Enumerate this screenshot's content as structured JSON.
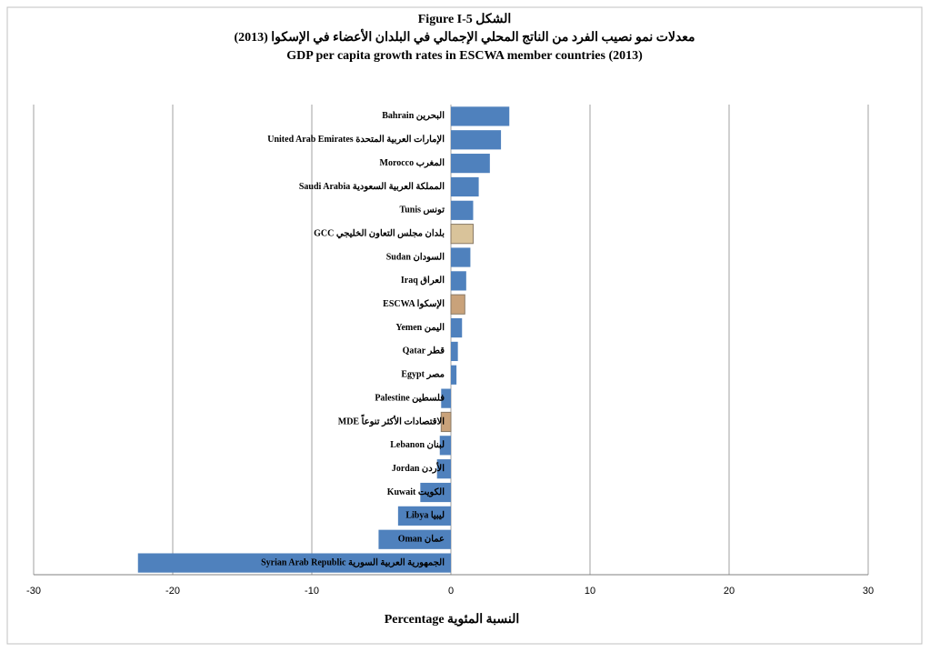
{
  "chart_data": {
    "type": "hbar",
    "title_lines": [
      "Figure I-5 الشكل",
      "معدلات نمو نصيب الفرد من الناتج المحلي الإجمالي في البلدان الأعضاء في الإسكوا (2013)",
      "GDP per capita growth rates in ESCWA member countries (2013)"
    ],
    "x_label": "Percentage   النسبة المئوية",
    "categories": [
      "Bahrain البحرين",
      "United Arab Emirates الإمارات العربية المتحدة",
      "Morocco المغرب",
      "Saudi Arabia المملكة العربية السعودية",
      "Tunis تونس",
      "GCC  بلدان مجلس التعاون الخليجي",
      "Sudan السودان",
      "Iraq العراق",
      "ESCWA  الإسكوا",
      "Yemen اليمن",
      "Qatar قطر",
      "Egypt مصر",
      "Palestine فلسطين",
      "MDE   الاقتصادات الأكثر تنوعاً",
      "Lebanon لبنان",
      "Jordan الأردن",
      "Kuwait الكويت",
      "Libya ليبيا",
      "Oman عمان",
      "Syrian Arab Republic الجمهورية العربية السورية"
    ],
    "values": [
      4.2,
      3.6,
      2.8,
      2.0,
      1.6,
      1.6,
      1.4,
      1.1,
      1.0,
      0.8,
      0.5,
      0.4,
      -0.7,
      -0.7,
      -0.8,
      -1.0,
      -2.2,
      -3.8,
      -5.2,
      -22.5
    ],
    "colors": [
      "#4f81bd",
      "#4f81bd",
      "#4f81bd",
      "#4f81bd",
      "#4f81bd",
      "#d9c39a",
      "#4f81bd",
      "#4f81bd",
      "#c9a27a",
      "#4f81bd",
      "#4f81bd",
      "#4f81bd",
      "#4f81bd",
      "#c9a27a",
      "#4f81bd",
      "#4f81bd",
      "#4f81bd",
      "#4f81bd",
      "#4f81bd",
      "#4f81bd"
    ],
    "xlim": [
      -30,
      30
    ],
    "xticks": [
      -30,
      -20,
      -10,
      0,
      10,
      20,
      30
    ],
    "grid": true
  }
}
